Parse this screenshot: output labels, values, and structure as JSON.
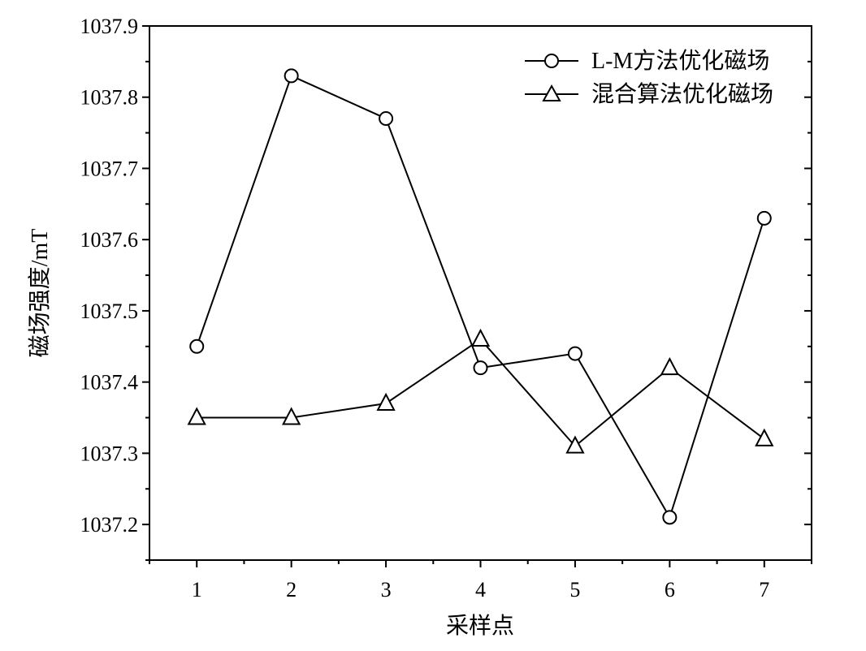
{
  "chart_data": {
    "type": "line",
    "title": "",
    "xlabel": "采样点",
    "ylabel": "磁场强度/mT",
    "x": [
      1,
      2,
      3,
      4,
      5,
      6,
      7
    ],
    "xlim": [
      0.5,
      7.5
    ],
    "ylim": [
      1037.15,
      1037.9
    ],
    "xticks": [
      1,
      2,
      3,
      4,
      5,
      6,
      7
    ],
    "yticks": [
      1037.2,
      1037.3,
      1037.4,
      1037.5,
      1037.6,
      1037.7,
      1037.8,
      1037.9
    ],
    "ytick_labels": [
      "1037.2",
      "1037.3",
      "1037.4",
      "1037.5",
      "1037.6",
      "1037.7",
      "1037.8",
      "1037.9"
    ],
    "grid": false,
    "legend_position": "top-right",
    "series": [
      {
        "name": "L-M方法优化磁场",
        "marker": "circle",
        "values": [
          1037.45,
          1037.83,
          1037.77,
          1037.42,
          1037.44,
          1037.21,
          1037.63
        ]
      },
      {
        "name": "混合算法优化磁场",
        "marker": "triangle",
        "values": [
          1037.35,
          1037.35,
          1037.37,
          1037.46,
          1037.31,
          1037.42,
          1037.32
        ]
      }
    ]
  }
}
